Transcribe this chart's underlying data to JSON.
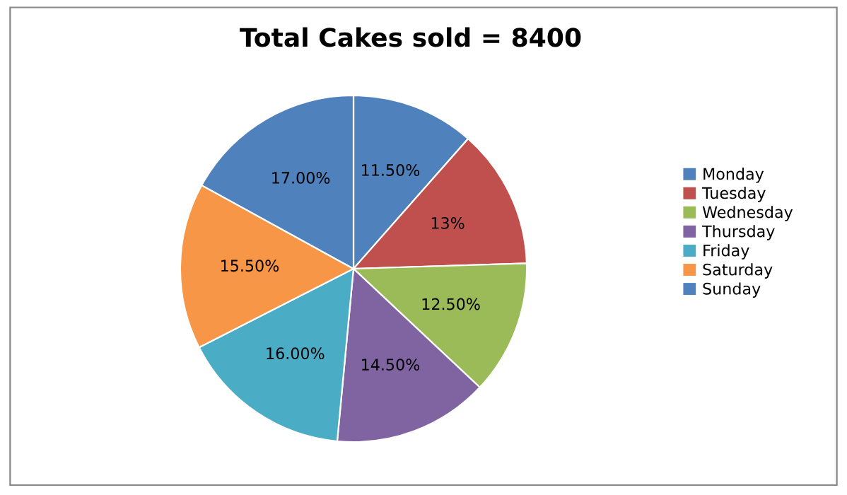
{
  "chart_data": {
    "type": "pie",
    "title": "Total Cakes sold = 8400",
    "categories": [
      "Monday",
      "Tuesday",
      "Wednesday",
      "Thursday",
      "Friday",
      "Saturday",
      "Sunday"
    ],
    "values": [
      11.5,
      13,
      12.5,
      14.5,
      16,
      15.5,
      17
    ],
    "value_labels": [
      "11.50%",
      "13%",
      "12.50%",
      "14.50%",
      "16.00%",
      "15.50%",
      "17.00%"
    ],
    "colors": [
      "#4f81bd",
      "#c0504d",
      "#9bbb59",
      "#8064a2",
      "#4bacc6",
      "#f79646",
      "#4f81bd"
    ],
    "legend": "right"
  }
}
